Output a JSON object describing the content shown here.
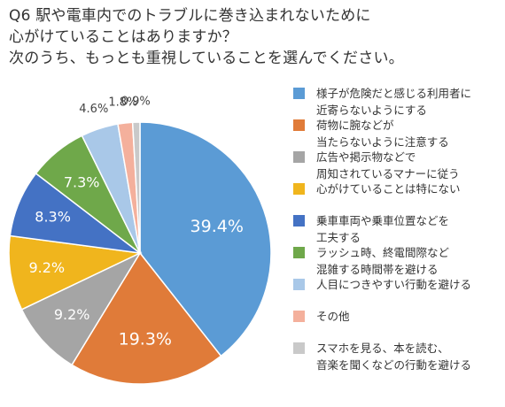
{
  "title_lines": [
    "Q6 駅や電車内でのトラブルに巻き込まれないために",
    "心がけていることはありますか？",
    "次のうち、もっとも重視していることを選んでください。"
  ],
  "chart_data": {
    "type": "pie",
    "categories": [
      "様子が危険だと感じる利用者に\n近寄らないようにする",
      "荷物に腕などが\n当たらないように注意する",
      "広告や掲示物などで\n周知されているマナーに従う",
      "心がけていることは特にない",
      "乗車車両や乗車位置などを\n工夫する",
      "ラッシュ時、終電間際など\n混雑する時間帯を避ける",
      "人目につきやすい行動を避ける",
      "その他",
      "スマホを見る、本を読む、\n音楽を聞くなどの行動を避ける"
    ],
    "values": [
      39.4,
      19.3,
      9.2,
      9.2,
      8.3,
      7.3,
      4.6,
      1.8,
      0.9
    ],
    "labels": [
      "39.4%",
      "19.3%",
      "9.2%",
      "9.2%",
      "8.3%",
      "7.3%",
      "4.6%",
      "1.8%",
      "0.9%"
    ],
    "colors": [
      "#5b9bd5",
      "#e07b39",
      "#a5a5a5",
      "#f0b51d",
      "#4472c4",
      "#6fa84a",
      "#a9c8e8",
      "#f4b09c",
      "#c9c9c9"
    ],
    "label_colors": [
      "#ffffff",
      "#ffffff",
      "#ffffff",
      "#ffffff",
      "#ffffff",
      "#ffffff",
      "#444444",
      "#444444",
      "#444444"
    ],
    "start_angle": "12 o'clock",
    "direction": "clockwise",
    "legend_position": "right"
  }
}
